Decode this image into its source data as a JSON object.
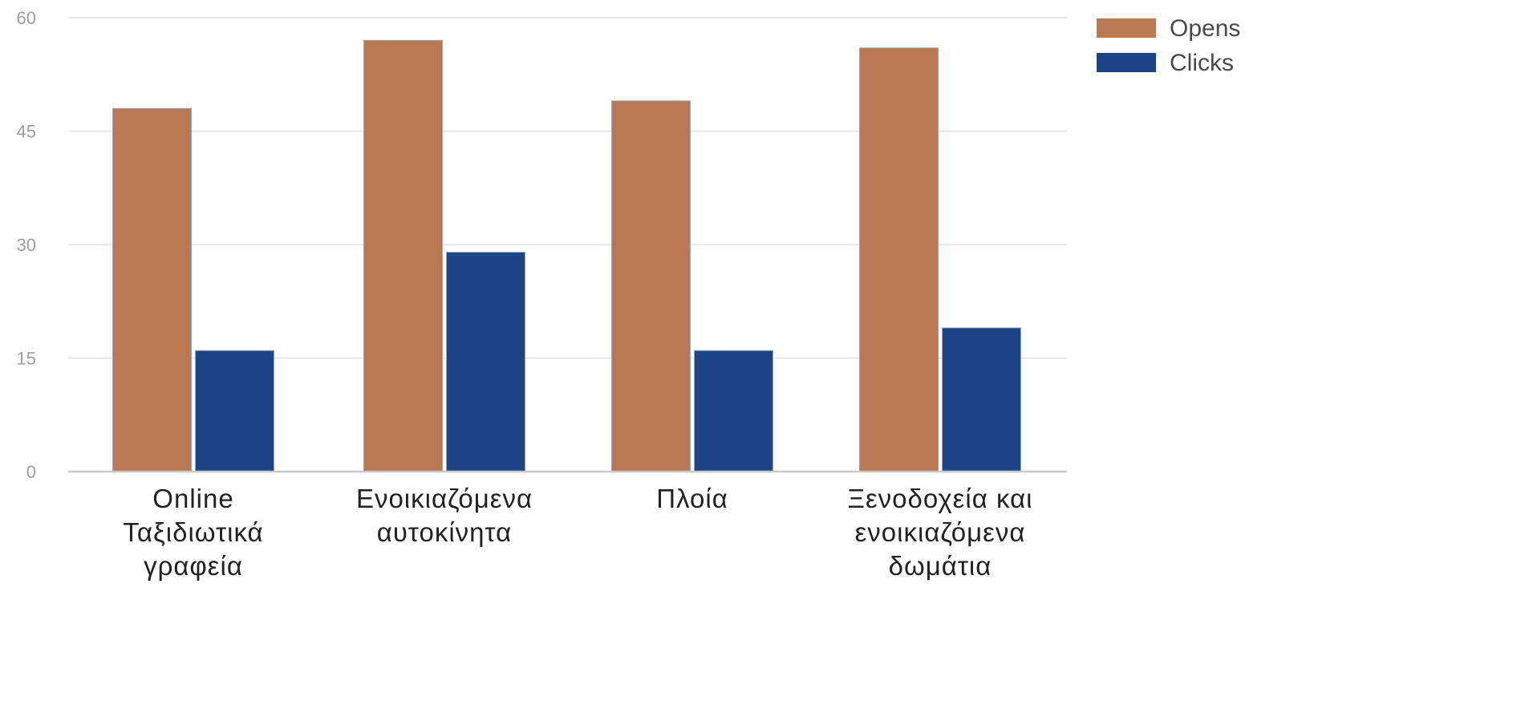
{
  "chart_data": {
    "type": "bar",
    "categories": [
      [
        "Online",
        "Ταξιδιωτικά",
        "γραφεία"
      ],
      [
        "Ενοικιαζόμενα",
        "αυτοκίνητα"
      ],
      [
        "Πλοία"
      ],
      [
        "Ξενοδοχεία και",
        "ενοικιαζόμενα",
        "δωμάτια"
      ]
    ],
    "series": [
      {
        "name": "Opens",
        "values": [
          48,
          57,
          49,
          56
        ],
        "color": "#b87851"
      },
      {
        "name": "Clicks",
        "values": [
          16,
          29,
          16,
          19
        ],
        "color": "#1c4587"
      }
    ],
    "yticks": [
      0,
      15,
      30,
      45,
      60
    ],
    "ylim": [
      0,
      60
    ],
    "grid": true,
    "legend_position": "top-right",
    "colors": {
      "grid": "#e2e2e2",
      "axis": "#c9c9c9"
    }
  }
}
